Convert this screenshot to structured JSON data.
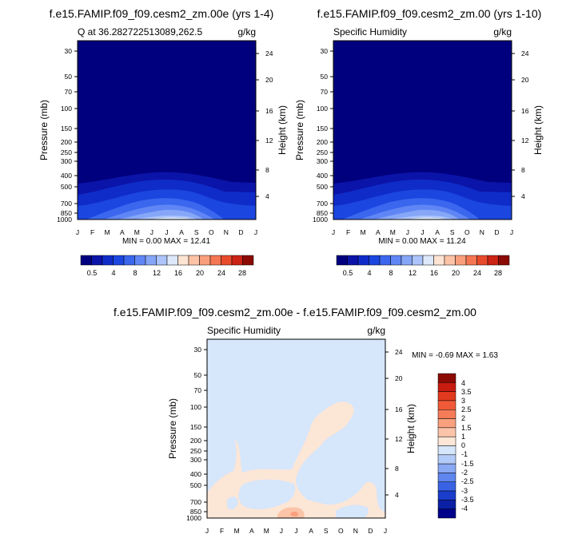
{
  "chart_data": [
    {
      "type": "contour",
      "title": "f.e15.FAMIP.f09_f09.cesm2_zm.00e (yrs 1-4)",
      "left_label": "Q at 36.282722513089,262.5",
      "right_label": "g/kg",
      "ylabel": "Pressure (mb)",
      "ylabel_right": "Height (km)",
      "x_ticks": [
        "J",
        "F",
        "M",
        "A",
        "M",
        "J",
        "J",
        "A",
        "S",
        "O",
        "N",
        "D",
        "J"
      ],
      "y_ticks": [
        "30",
        "50",
        "70",
        "100",
        "150",
        "200",
        "250",
        "300",
        "400",
        "500",
        "700",
        "850",
        "1000"
      ],
      "y_ticks_right": [
        "24",
        "20",
        "16",
        "12",
        "8",
        "4"
      ],
      "stats": "MIN =   0.00 MAX =  12.41",
      "min": 0.0,
      "max": 12.41,
      "colorbar_labels": [
        "0.5",
        "4",
        "8",
        "12",
        "16",
        "20",
        "24",
        "28"
      ]
    },
    {
      "type": "contour",
      "title": "f.e15.FAMIP.f09_f09.cesm2_zm.00 (yrs 1-10)",
      "left_label": "Specific Humidity",
      "right_label": "g/kg",
      "ylabel": "Pressure (mb)",
      "ylabel_right": "Height (km)",
      "x_ticks": [
        "J",
        "F",
        "M",
        "A",
        "M",
        "J",
        "J",
        "A",
        "S",
        "O",
        "N",
        "D",
        "J"
      ],
      "y_ticks": [
        "30",
        "50",
        "70",
        "100",
        "150",
        "200",
        "250",
        "300",
        "400",
        "500",
        "700",
        "850",
        "1000"
      ],
      "y_ticks_right": [
        "24",
        "20",
        "16",
        "12",
        "8",
        "4"
      ],
      "stats": "MIN =   0.00 MAX =  11.24",
      "min": 0.0,
      "max": 11.24,
      "colorbar_labels": [
        "0.5",
        "4",
        "8",
        "12",
        "16",
        "20",
        "24",
        "28"
      ]
    },
    {
      "type": "contour",
      "title": "f.e15.FAMIP.f09_f09.cesm2_zm.00e - f.e15.FAMIP.f09_f09.cesm2_zm.00",
      "left_label": "Specific Humidity",
      "right_label": "g/kg",
      "ylabel": "Pressure (mb)",
      "ylabel_right": "Height (km)",
      "x_ticks": [
        "J",
        "F",
        "M",
        "A",
        "M",
        "J",
        "J",
        "A",
        "S",
        "O",
        "N",
        "D",
        "J"
      ],
      "y_ticks": [
        "30",
        "50",
        "70",
        "100",
        "150",
        "200",
        "250",
        "300",
        "400",
        "500",
        "700",
        "850",
        "1000"
      ],
      "y_ticks_right": [
        "24",
        "20",
        "16",
        "12",
        "8",
        "4"
      ],
      "stats": "MIN =  -0.69 MAX =   1.63",
      "min": -0.69,
      "max": 1.63,
      "colorbar_labels": [
        "4",
        "3.5",
        "3",
        "2.5",
        "2",
        "1.5",
        "1",
        "0",
        "-1",
        "-1.5",
        "-2",
        "-2.5",
        "-3",
        "-3.5",
        "-4"
      ]
    }
  ],
  "colors": {
    "seq": [
      "#00007f",
      "#0b14a8",
      "#0f2cc9",
      "#1b46e0",
      "#3b66ee",
      "#5f86f4",
      "#86a6f7",
      "#acc4fa",
      "#dde9fb",
      "#fde3d2",
      "#fcc3a6",
      "#fa9f7b",
      "#f47652",
      "#e84a2c",
      "#cc2314",
      "#8c0a04"
    ],
    "diff": [
      "#8c0a04",
      "#c81c10",
      "#e23a1e",
      "#f05a38",
      "#f67c58",
      "#f9a07e",
      "#fbc4a8",
      "#fce6d6",
      "#d6e6fb",
      "#b3cbf8",
      "#8aa9f4",
      "#5f86ee",
      "#3a62e4",
      "#1a3dcc",
      "#0b20a4",
      "#00008a"
    ]
  }
}
